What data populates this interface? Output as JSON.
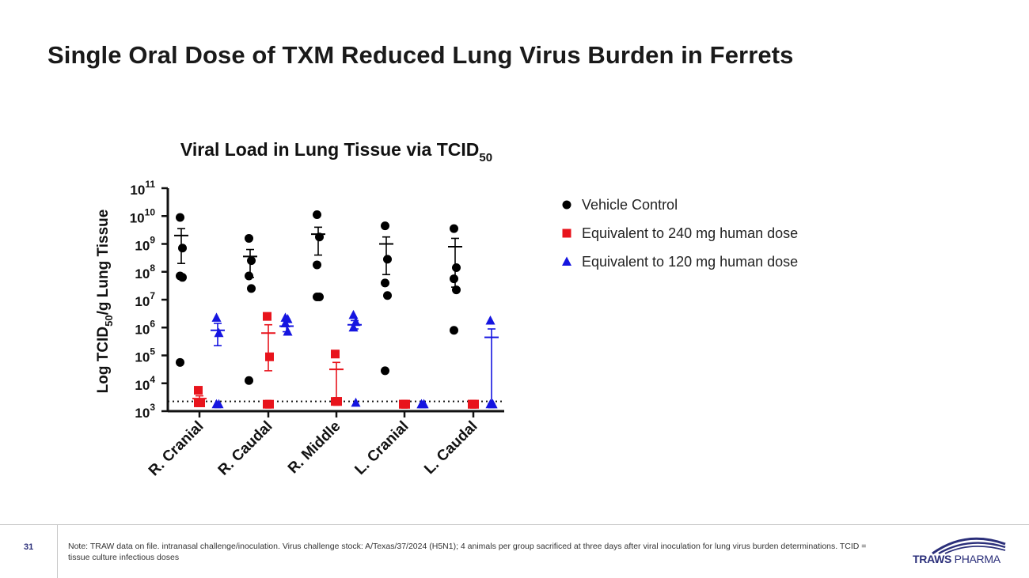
{
  "slide": {
    "title": "Single Oral Dose of TXM Reduced Lung Virus Burden in Ferrets",
    "page_number": "31",
    "note": "Note: TRAW data on file. intranasal challenge/inoculation. Virus challenge stock: A/Texas/37/2024 (H5N1); 4 animals per group sacrificed at three days after viral inoculation for lung virus burden determinations. TCID = tissue culture infectious doses",
    "logo": {
      "word1": "TRAWS",
      "word2": "PHARMA",
      "color": "#2b2f7a"
    }
  },
  "chart_data": {
    "type": "scatter",
    "title": "Viral Load in Lung Tissue via TCID",
    "title_subscript": "50",
    "ylabel_parts": [
      "Log TCID",
      "50",
      "/g Lung Tissue"
    ],
    "yscale": "log10",
    "ylim_exp": [
      3,
      11
    ],
    "y_ticks": [
      {
        "base": "10",
        "exp": "11"
      },
      {
        "base": "10",
        "exp": "10"
      },
      {
        "base": "10",
        "exp": "9"
      },
      {
        "base": "10",
        "exp": "8"
      },
      {
        "base": "10",
        "exp": "7"
      },
      {
        "base": "10",
        "exp": "6"
      },
      {
        "base": "10",
        "exp": "5"
      },
      {
        "base": "10",
        "exp": "4"
      },
      {
        "base": "10",
        "exp": "3"
      }
    ],
    "categories": [
      "R. Cranial",
      "R. Caudal",
      "R. Middle",
      "L. Cranial",
      "L. Caudal"
    ],
    "limit_of_detection_exp": 3.35,
    "series": [
      {
        "name": "Vehicle Control",
        "color": "#000000",
        "marker": "circle",
        "points_exp": [
          [
            9.95,
            8.85,
            7.85,
            7.8,
            4.75
          ],
          [
            9.2,
            8.4,
            7.85,
            7.4,
            4.1
          ],
          [
            10.05,
            9.25,
            8.25,
            7.1,
            7.1
          ],
          [
            9.65,
            8.45,
            7.6,
            7.15,
            4.45
          ],
          [
            9.55,
            8.15,
            7.75,
            7.35,
            5.9
          ]
        ],
        "mean_exp": [
          9.3,
          8.55,
          9.35,
          9.0,
          8.9
        ],
        "err_lo_exp": [
          8.3,
          7.8,
          8.6,
          7.9,
          7.45
        ],
        "err_hi_exp": [
          9.55,
          8.8,
          9.6,
          9.25,
          9.2
        ]
      },
      {
        "name": "Equivalent to 240 mg human dose",
        "color": "#e8141c",
        "marker": "square",
        "points_exp": [
          [
            3.75,
            3.3,
            3.3,
            3.3
          ],
          [
            6.4,
            4.95,
            3.25,
            3.25
          ],
          [
            5.05,
            3.35,
            3.35,
            3.35
          ],
          [
            3.25,
            3.25,
            3.25,
            3.25
          ],
          [
            3.25,
            3.25,
            3.25,
            3.25
          ]
        ],
        "mean_exp": [
          3.45,
          5.8,
          4.5,
          3.25,
          3.25
        ],
        "err_lo_exp": [
          3.3,
          4.45,
          3.3,
          3.25,
          3.25
        ],
        "err_hi_exp": [
          3.55,
          6.1,
          4.75,
          3.25,
          3.25
        ]
      },
      {
        "name": "Equivalent to 120 mg human dose",
        "color": "#1515e0",
        "marker": "triangle",
        "points_exp": [
          [
            6.35,
            5.8,
            3.25,
            3.25
          ],
          [
            6.35,
            6.3,
            6.15,
            5.85
          ],
          [
            6.45,
            6.2,
            6.0,
            3.3
          ],
          [
            3.25,
            3.25,
            3.25,
            3.25
          ],
          [
            6.25,
            3.25,
            3.25,
            3.25
          ]
        ],
        "mean_exp": [
          5.9,
          6.05,
          6.1,
          3.25,
          5.65
        ],
        "err_lo_exp": [
          5.35,
          5.85,
          5.95,
          3.25,
          3.25
        ],
        "err_hi_exp": [
          6.15,
          6.3,
          6.25,
          3.25,
          5.95
        ]
      }
    ],
    "legend_position": "right"
  }
}
